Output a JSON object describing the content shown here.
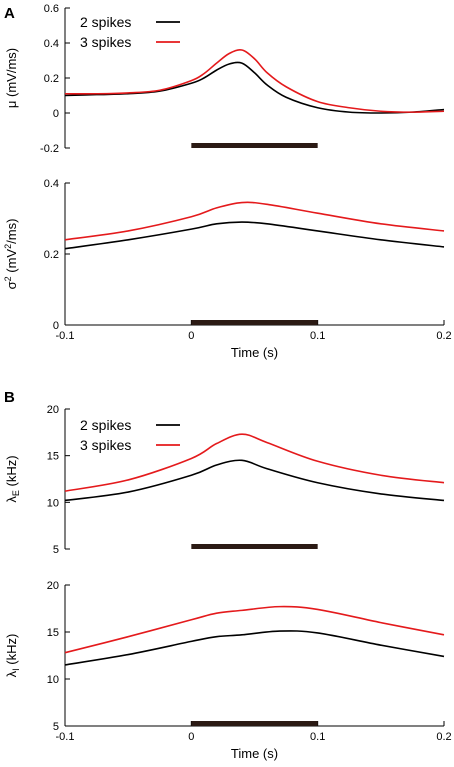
{
  "panel_labels": [
    "A",
    "B"
  ],
  "colors": {
    "two_spikes": "#000000",
    "three_spikes": "#e41a1c",
    "stim_bar": "#2b1a14",
    "axis": "#000000"
  },
  "chart_data": [
    {
      "type": "line",
      "panel": "A",
      "ylabel_main": "μ",
      "ylabel_unit": "(mV/ms)",
      "xlim": [
        -0.1,
        0.2
      ],
      "ylim": [
        -0.2,
        0.6
      ],
      "yticks": [
        "-0.2",
        "0",
        "0.2",
        "0.4",
        "0.6"
      ],
      "yticks_values": [
        -0.2,
        0,
        0.2,
        0.4,
        0.6
      ],
      "stimulus": [
        0,
        0.1
      ],
      "legend": [
        "2 spikes",
        "3 spikes"
      ],
      "x": [
        -0.1,
        -0.075,
        -0.05,
        -0.025,
        0,
        0.01,
        0.02,
        0.03,
        0.04,
        0.05,
        0.06,
        0.075,
        0.1,
        0.125,
        0.15,
        0.175,
        0.2
      ],
      "series": [
        {
          "name": "2 spikes",
          "values": [
            0.1,
            0.105,
            0.11,
            0.125,
            0.17,
            0.2,
            0.245,
            0.28,
            0.285,
            0.23,
            0.16,
            0.09,
            0.03,
            0.005,
            0.0,
            0.005,
            0.02
          ]
        },
        {
          "name": "3 spikes",
          "values": [
            0.11,
            0.11,
            0.115,
            0.13,
            0.185,
            0.225,
            0.285,
            0.34,
            0.36,
            0.31,
            0.23,
            0.15,
            0.065,
            0.03,
            0.01,
            0.005,
            0.01
          ]
        }
      ]
    },
    {
      "type": "line",
      "panel": "A",
      "ylabel_main": "σ",
      "ylabel_sup": "2",
      "ylabel_unit": "(mV",
      "ylabel_unit_sup": "2",
      "ylabel_unit_tail": "/ms)",
      "xlim": [
        -0.1,
        0.2
      ],
      "ylim": [
        0,
        0.4
      ],
      "yticks": [
        "0",
        "0.2",
        "0.4"
      ],
      "yticks_values": [
        0,
        0.2,
        0.4
      ],
      "xticks": [
        "-0.1",
        "0",
        "0.1",
        "0.2"
      ],
      "xticks_values": [
        -0.1,
        0,
        0.1,
        0.2
      ],
      "xlabel": "Time (s)",
      "stimulus": [
        0,
        0.1
      ],
      "x": [
        -0.1,
        -0.05,
        0,
        0.02,
        0.04,
        0.06,
        0.1,
        0.15,
        0.2
      ],
      "series": [
        {
          "name": "2 spikes",
          "values": [
            0.215,
            0.24,
            0.27,
            0.285,
            0.29,
            0.285,
            0.265,
            0.24,
            0.22
          ]
        },
        {
          "name": "3 spikes",
          "values": [
            0.24,
            0.265,
            0.305,
            0.33,
            0.345,
            0.34,
            0.315,
            0.285,
            0.265
          ]
        }
      ]
    },
    {
      "type": "line",
      "panel": "B",
      "ylabel_main": "λ",
      "ylabel_sub": "E",
      "ylabel_unit": "(kHz)",
      "xlim": [
        -0.1,
        0.2
      ],
      "ylim": [
        5,
        20
      ],
      "yticks": [
        "5",
        "10",
        "15",
        "20"
      ],
      "yticks_values": [
        5,
        10,
        15,
        20
      ],
      "stimulus": [
        0,
        0.1
      ],
      "legend": [
        "2 spikes",
        "3 spikes"
      ],
      "x": [
        -0.1,
        -0.05,
        0,
        0.02,
        0.04,
        0.06,
        0.1,
        0.15,
        0.2
      ],
      "series": [
        {
          "name": "2 spikes",
          "values": [
            10.2,
            11.1,
            12.9,
            14.0,
            14.5,
            13.6,
            12.1,
            10.9,
            10.2
          ]
        },
        {
          "name": "3 spikes",
          "values": [
            11.2,
            12.4,
            14.7,
            16.3,
            17.3,
            16.4,
            14.4,
            12.9,
            12.1
          ]
        }
      ]
    },
    {
      "type": "line",
      "panel": "B",
      "ylabel_main": "λ",
      "ylabel_sub": "I",
      "ylabel_unit": "(kHz)",
      "xlim": [
        -0.1,
        0.2
      ],
      "ylim": [
        5,
        20
      ],
      "yticks": [
        "5",
        "10",
        "15",
        "20"
      ],
      "yticks_values": [
        5,
        10,
        15,
        20
      ],
      "xticks": [
        "-0.1",
        "0",
        "0.1",
        "0.2"
      ],
      "xticks_values": [
        -0.1,
        0,
        0.1,
        0.2
      ],
      "xlabel": "Time (s)",
      "stimulus": [
        0,
        0.1
      ],
      "x": [
        -0.1,
        -0.05,
        0,
        0.02,
        0.04,
        0.07,
        0.1,
        0.15,
        0.2
      ],
      "series": [
        {
          "name": "2 spikes",
          "values": [
            11.5,
            12.6,
            14.0,
            14.5,
            14.7,
            15.1,
            14.9,
            13.6,
            12.4
          ]
        },
        {
          "name": "3 spikes",
          "values": [
            12.8,
            14.5,
            16.3,
            17.0,
            17.3,
            17.7,
            17.4,
            16.0,
            14.7
          ]
        }
      ]
    }
  ]
}
